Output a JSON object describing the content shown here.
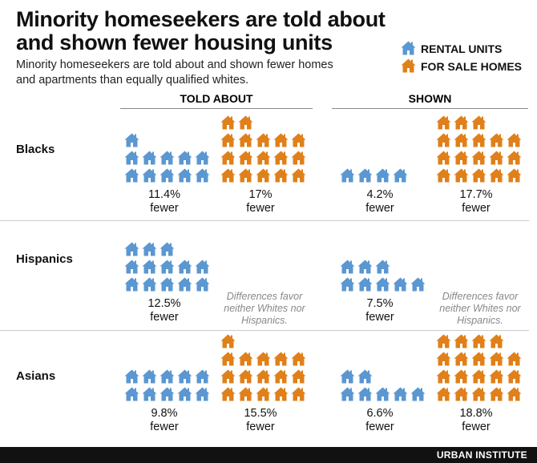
{
  "title": "Minority homeseekers are told about and shown fewer housing units",
  "subtitle": "Minority homeseekers are told about and shown fewer homes and apartments than equally qualified whites.",
  "legend": {
    "rental": "RENTAL UNITS",
    "sale": "FOR SALE HOMES"
  },
  "colors": {
    "rental": "#5b97d1",
    "sale": "#e0801a"
  },
  "brand": "URBAN INSTITUTE",
  "chart_data": {
    "type": "pictogram",
    "columns": [
      "TOLD ABOUT",
      "SHOWN"
    ],
    "groups": [
      {
        "name": "Blacks",
        "told": {
          "rental": {
            "icons": 11,
            "label": "11.4%",
            "sub": "fewer"
          },
          "sale": {
            "icons": 17,
            "label": "17%",
            "sub": "fewer"
          }
        },
        "shown": {
          "rental": {
            "icons": 4,
            "label": "4.2%",
            "sub": "fewer"
          },
          "sale": {
            "icons": 18,
            "label": "17.7%",
            "sub": "fewer"
          }
        }
      },
      {
        "name": "Hispanics",
        "told": {
          "rental": {
            "icons": 13,
            "label": "12.5%",
            "sub": "fewer"
          },
          "sale": {
            "note": "Differences favor neither Whites nor Hispanics."
          }
        },
        "shown": {
          "rental": {
            "icons": 8,
            "label": "7.5%",
            "sub": "fewer"
          },
          "sale": {
            "note": "Differences favor neither Whites nor Hispanics."
          }
        }
      },
      {
        "name": "Asians",
        "told": {
          "rental": {
            "icons": 10,
            "label": "9.8%",
            "sub": "fewer"
          },
          "sale": {
            "icons": 16,
            "label": "15.5%",
            "sub": "fewer"
          }
        },
        "shown": {
          "rental": {
            "icons": 7,
            "label": "6.6%",
            "sub": "fewer"
          },
          "sale": {
            "icons": 19,
            "label": "18.8%",
            "sub": "fewer"
          }
        }
      }
    ]
  }
}
